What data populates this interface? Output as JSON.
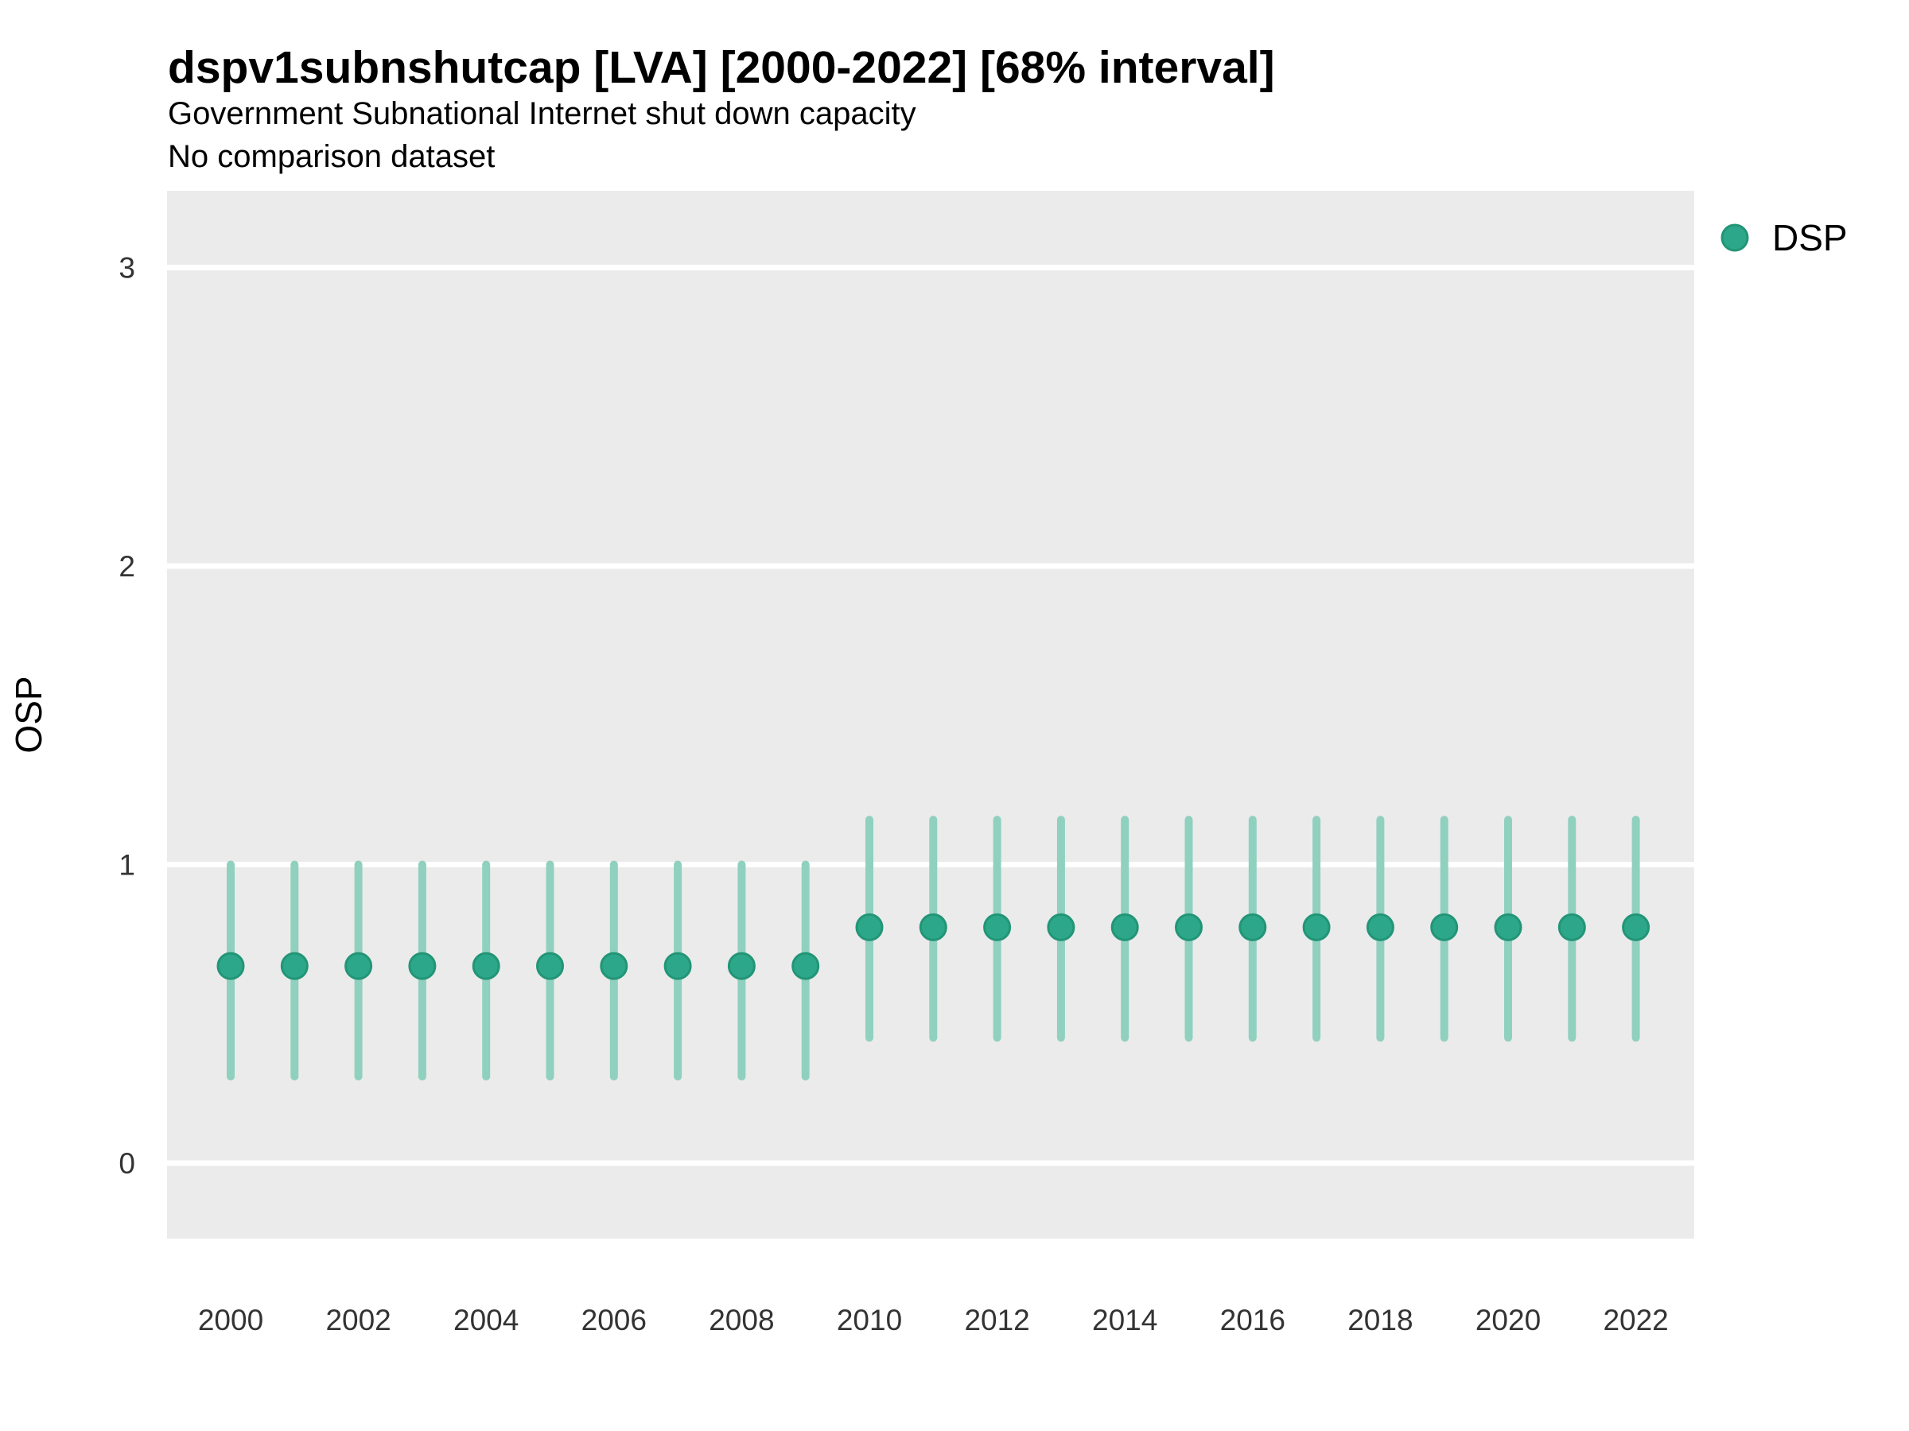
{
  "colors": {
    "panel": "#EBEBEB",
    "gridline": "#FFFFFF",
    "point_fill": "#2CA78A",
    "point_stroke": "#239577",
    "interval": "#90D0BF",
    "tick_text": "#333333",
    "text": "#000000"
  },
  "chart_data": {
    "type": "scatter",
    "subtype": "pointrange",
    "title": "dspv1subnshutcap [LVA] [2000-2022] [68% interval]",
    "subtitle1": "Government Subnational Internet shut down capacity",
    "subtitle2": "No comparison dataset",
    "xlabel": "",
    "ylabel": "OSP",
    "interval_label": "68% interval",
    "country": "LVA",
    "ylim": [
      -0.25,
      3.26
    ],
    "xlim": [
      1999,
      2023
    ],
    "y_ticks": [
      0,
      1,
      2,
      3
    ],
    "x_ticks": [
      2000,
      2002,
      2004,
      2006,
      2008,
      2010,
      2012,
      2014,
      2016,
      2018,
      2020,
      2022
    ],
    "grid": "horizontal-only",
    "legend_position": "right",
    "series": [
      {
        "name": "DSP",
        "x": [
          2000,
          2001,
          2002,
          2003,
          2004,
          2005,
          2006,
          2007,
          2008,
          2009,
          2010,
          2011,
          2012,
          2013,
          2014,
          2015,
          2016,
          2017,
          2018,
          2019,
          2020,
          2021,
          2022
        ],
        "est": [
          0.66,
          0.66,
          0.66,
          0.66,
          0.66,
          0.66,
          0.66,
          0.66,
          0.66,
          0.66,
          0.79,
          0.79,
          0.79,
          0.79,
          0.79,
          0.79,
          0.79,
          0.79,
          0.79,
          0.79,
          0.79,
          0.79,
          0.79
        ],
        "lo": [
          0.29,
          0.29,
          0.29,
          0.29,
          0.29,
          0.29,
          0.29,
          0.29,
          0.29,
          0.29,
          0.42,
          0.42,
          0.42,
          0.42,
          0.42,
          0.42,
          0.42,
          0.42,
          0.42,
          0.42,
          0.42,
          0.42,
          0.42
        ],
        "hi": [
          1.0,
          1.0,
          1.0,
          1.0,
          1.0,
          1.0,
          1.0,
          1.0,
          1.0,
          1.0,
          1.15,
          1.15,
          1.15,
          1.15,
          1.15,
          1.15,
          1.15,
          1.15,
          1.15,
          1.15,
          1.15,
          1.15,
          1.15
        ]
      }
    ]
  }
}
